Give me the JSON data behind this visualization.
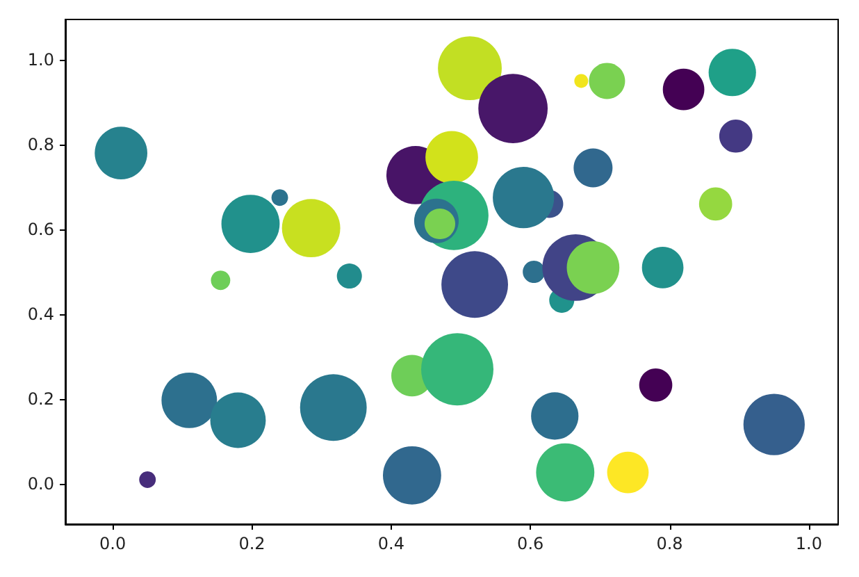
{
  "chart_data": {
    "type": "bubble",
    "xlim": [
      -0.068,
      1.042
    ],
    "ylim": [
      -0.095,
      1.095
    ],
    "xticks": [
      {
        "value": 0,
        "label": "0.0"
      },
      {
        "value": 0.2,
        "label": "0.2"
      },
      {
        "value": 0.4,
        "label": "0.4"
      },
      {
        "value": 0.6,
        "label": "0.6"
      },
      {
        "value": 0.8,
        "label": "0.8"
      },
      {
        "value": 1,
        "label": "1.0"
      }
    ],
    "yticks": [
      {
        "value": 0,
        "label": "0.0"
      },
      {
        "value": 0.2,
        "label": "0.2"
      },
      {
        "value": 0.4,
        "label": "0.4"
      },
      {
        "value": 0.6,
        "label": "0.6"
      },
      {
        "value": 0.8,
        "label": "0.8"
      },
      {
        "value": 1,
        "label": "1.0"
      }
    ],
    "grid": false,
    "x": [
      0.012,
      0.05,
      0.11,
      0.155,
      0.18,
      0.198,
      0.24,
      0.285,
      0.317,
      0.34,
      0.43,
      0.43,
      0.435,
      0.487,
      0.49,
      0.465,
      0.47,
      0.495,
      0.513,
      0.52,
      0.575,
      0.627,
      0.59,
      0.605,
      0.635,
      0.645,
      0.65,
      0.665,
      0.69,
      0.69,
      0.673,
      0.71,
      0.74,
      0.78,
      0.79,
      0.82,
      0.866,
      0.89,
      0.895,
      0.95
    ],
    "values": [
      0.78,
      0.01,
      0.197,
      0.48,
      0.15,
      0.613,
      0.675,
      0.603,
      0.18,
      0.49,
      0.02,
      0.255,
      0.728,
      0.77,
      0.633,
      0.62,
      0.613,
      0.27,
      0.98,
      0.47,
      0.885,
      0.66,
      0.675,
      0.5,
      0.16,
      0.433,
      0.027,
      0.51,
      0.51,
      0.745,
      0.95,
      0.95,
      0.027,
      0.233,
      0.51,
      0.93,
      0.66,
      0.97,
      0.82,
      0.14
    ],
    "sizes": [
      0.53,
      0.053,
      0.59,
      0.072,
      0.59,
      0.65,
      0.053,
      0.65,
      0.85,
      0.12,
      0.65,
      0.33,
      0.65,
      0.53,
      0.92,
      0.38,
      0.18,
      1,
      0.78,
      0.85,
      0.92,
      0.15,
      0.72,
      0.095,
      0.43,
      0.12,
      0.65,
      0.85,
      0.53,
      0.29,
      0.037,
      0.25,
      0.33,
      0.21,
      0.33,
      0.33,
      0.21,
      0.43,
      0.21,
      0.72
    ],
    "colors": [
      "#26828e",
      "#472d7b",
      "#2d708e",
      "#6ece58",
      "#287d8e",
      "#21918c",
      "#2c728e",
      "#c8e020",
      "#2a788e",
      "#228c8d",
      "#31688e",
      "#6ece58",
      "#481467",
      "#d2e21b",
      "#2db27d",
      "#2c728e",
      "#7ad151",
      "#35b779",
      "#c2df23",
      "#3e4989",
      "#481769",
      "#3b528b",
      "#2a788e",
      "#2d708e",
      "#2d6e8e",
      "#20928c",
      "#3bbb75",
      "#414487",
      "#7ad151",
      "#31688e",
      "#f1e51d",
      "#7ad151",
      "#fde725",
      "#440154",
      "#21918c",
      "#440154",
      "#95d840",
      "#1fa088",
      "#443983",
      "#355f8d"
    ]
  }
}
